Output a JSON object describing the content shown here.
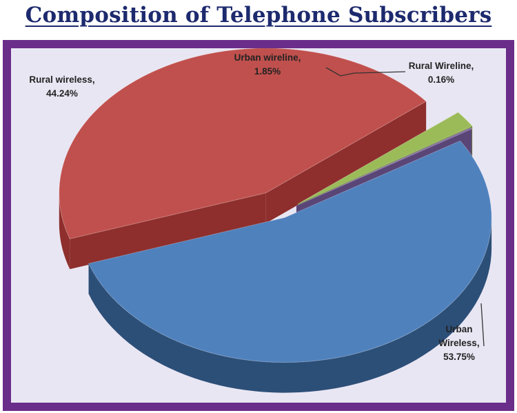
{
  "title": "Composition of Telephone Subscribers",
  "colors": {
    "frame": "#6b2d8a",
    "plot_background": "#e9e6f3",
    "title": "#1d2a6e"
  },
  "chart_data": {
    "type": "pie",
    "style": "3d-exploded",
    "title": "Composition of Telephone Subscribers",
    "legend": "none",
    "slices": [
      {
        "label_lines": [
          "Urban",
          "Wireless,",
          "53.75%"
        ],
        "name": "Urban Wireless",
        "value": 53.75,
        "color": "#4f81bd",
        "side_color": "#2c4f78"
      },
      {
        "label_lines": [
          "Rural wireless,",
          "44.24%"
        ],
        "name": "Rural wireless",
        "value": 44.24,
        "color": "#c0504d",
        "side_color": "#8e2f2d"
      },
      {
        "label_lines": [
          "Urban wireline,",
          "1.85%"
        ],
        "name": "Urban wireline",
        "value": 1.85,
        "color": "#9bbb59",
        "side_color": "#6a8a34"
      },
      {
        "label_lines": [
          "Rural Wireline,",
          "0.16%"
        ],
        "name": "Rural Wireline",
        "value": 0.16,
        "color": "#8064a2",
        "side_color": "#5a4577"
      }
    ]
  }
}
